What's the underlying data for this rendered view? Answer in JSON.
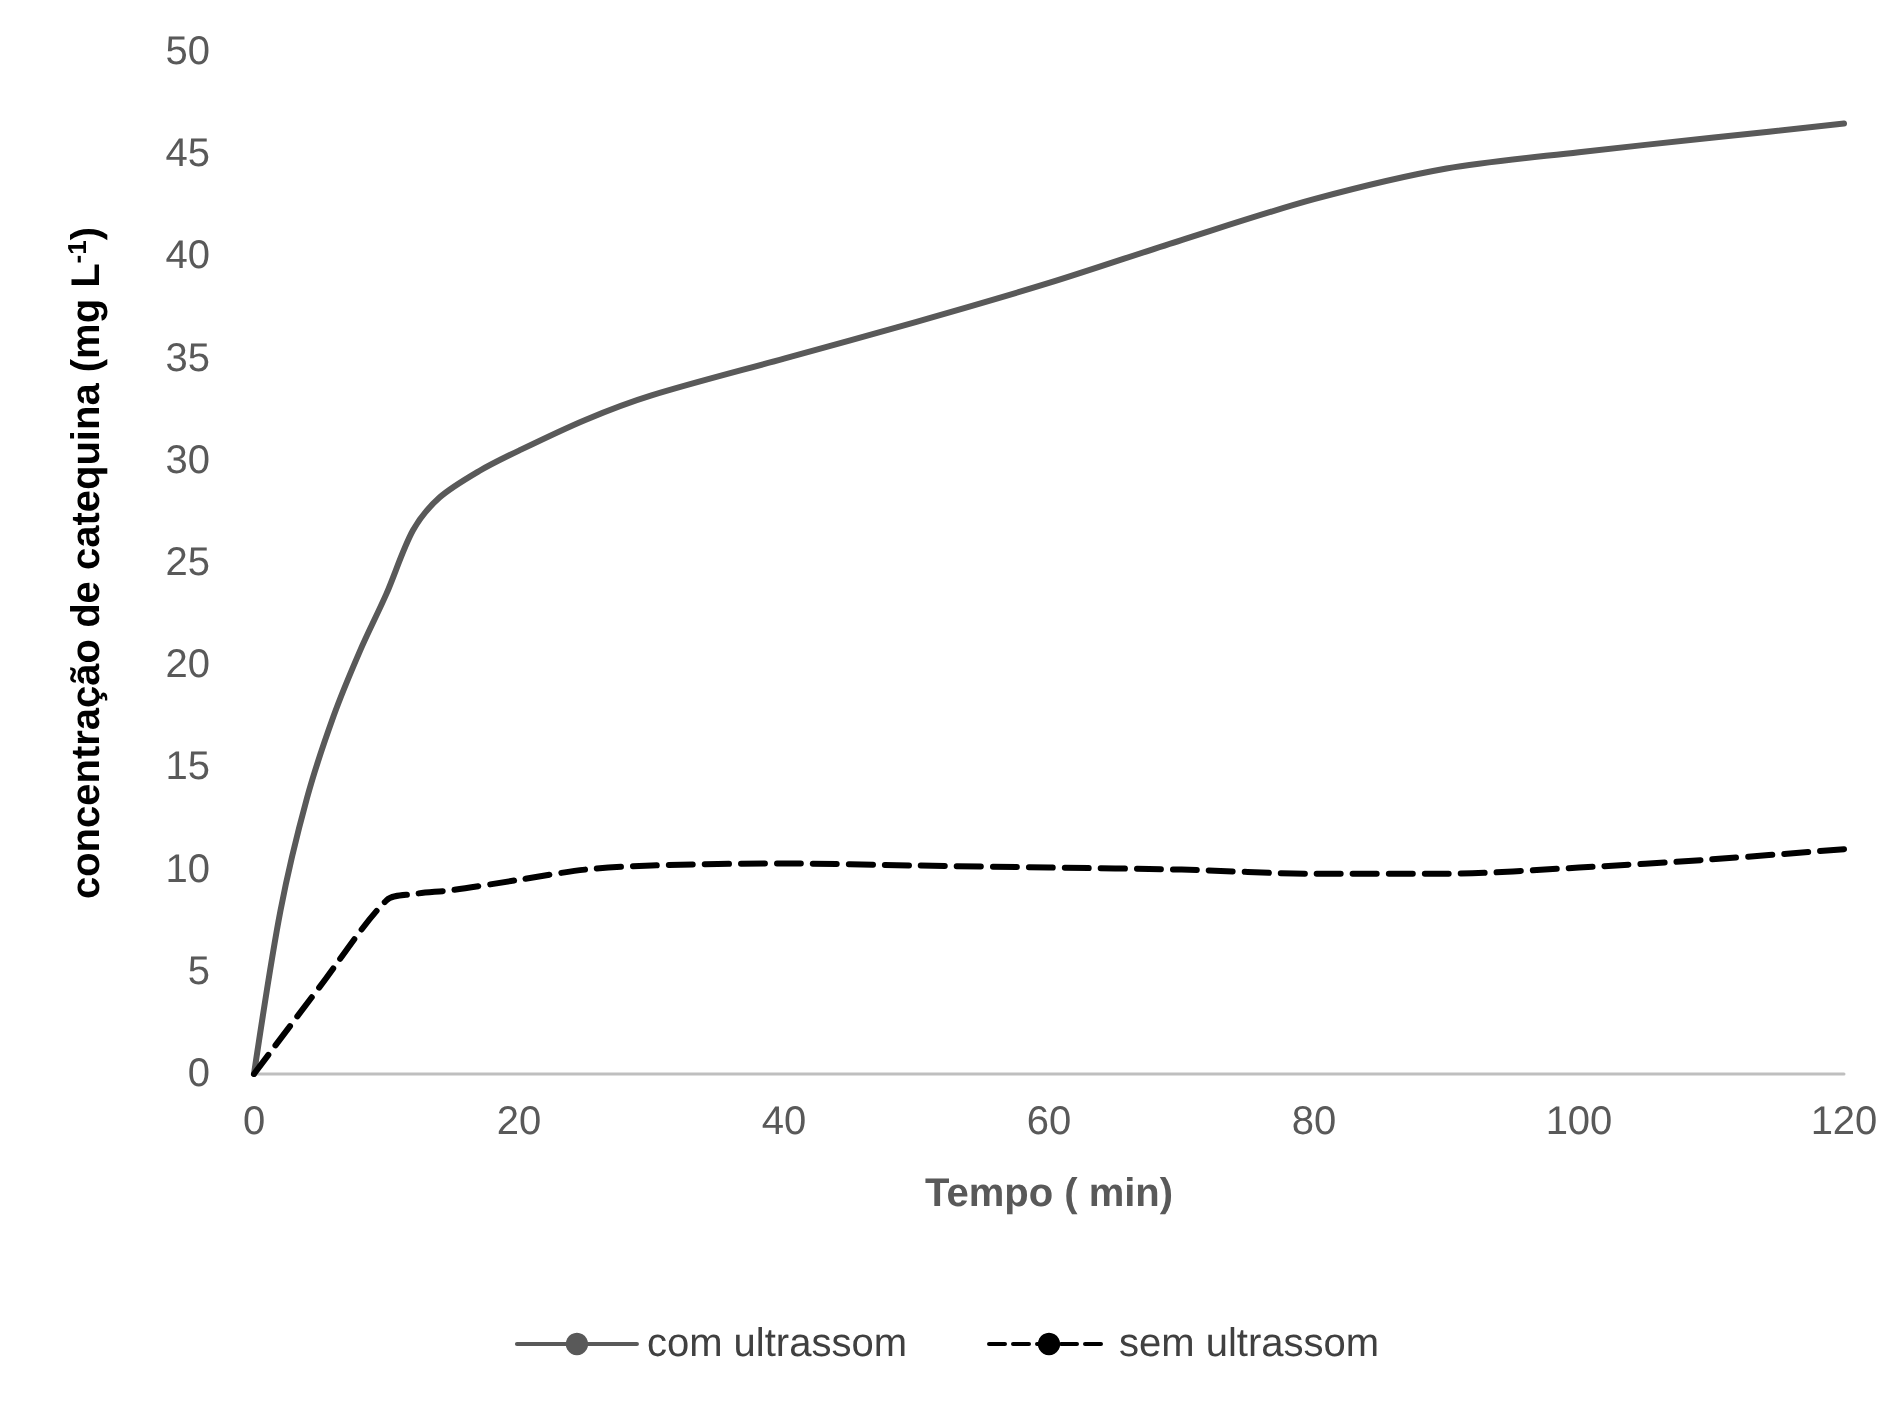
{
  "chart_data": {
    "type": "line",
    "xlabel": "Tempo ( min)",
    "ylabel": "concentração de catequina (mg L$^{-1}$)",
    "xlim": [
      0,
      120
    ],
    "xticks": [
      0,
      20,
      40,
      60,
      80,
      100,
      120
    ],
    "ylim": [
      0,
      50
    ],
    "yticks": [
      0,
      5,
      10,
      15,
      20,
      25,
      30,
      35,
      40,
      45,
      50
    ],
    "grid": false,
    "legend": "bottom",
    "marker": "none",
    "series": [
      {
        "name": "com ultrassom",
        "color": "#595959",
        "line_style": "solid",
        "x": [
          0,
          2,
          4,
          6,
          8,
          10,
          12,
          14,
          17,
          20,
          25,
          30,
          40,
          50,
          60,
          70,
          80,
          90,
          100,
          110,
          120
        ],
        "values": [
          0,
          8,
          13.5,
          17.5,
          20.7,
          23.5,
          26.6,
          28.2,
          29.5,
          30.5,
          32,
          33.2,
          35,
          36.8,
          38.7,
          40.8,
          42.8,
          44.3,
          45.1,
          45.8,
          46.5
        ]
      },
      {
        "name": "sem ultrassom",
        "color": "#000000",
        "line_style": "dashed",
        "x": [
          0,
          5,
          10,
          12,
          15,
          20,
          25,
          30,
          40,
          50,
          60,
          70,
          80,
          90,
          100,
          110,
          120
        ],
        "values": [
          0,
          4.3,
          8.5,
          8.8,
          9.0,
          9.5,
          10,
          10.2,
          10.3,
          10.2,
          10.1,
          10,
          9.8,
          9.8,
          10.1,
          10.5,
          11
        ]
      }
    ]
  }
}
